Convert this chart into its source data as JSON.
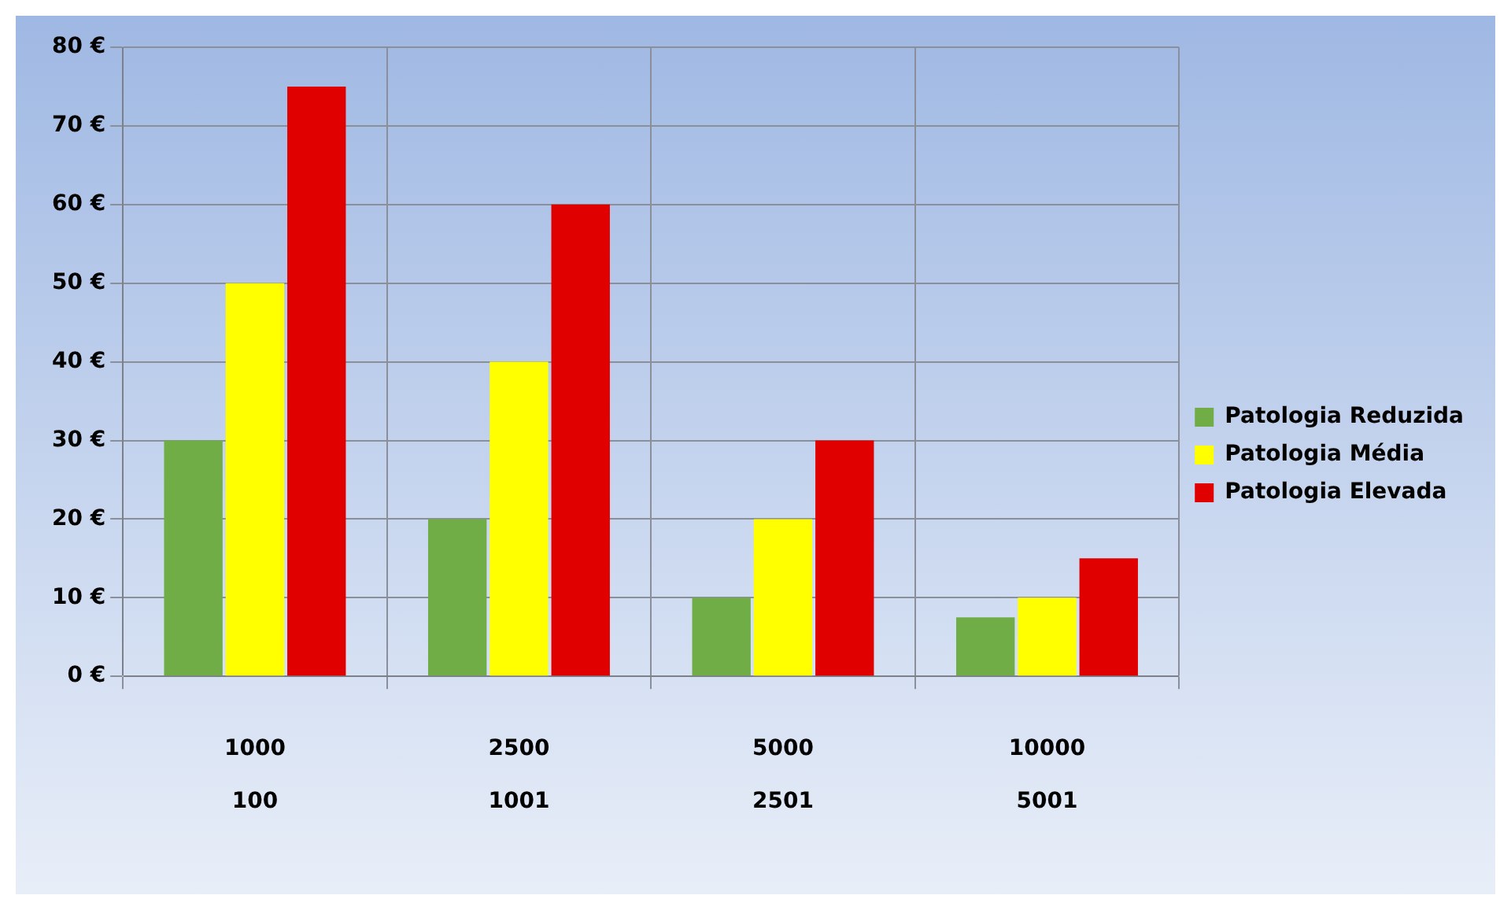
{
  "chart_data": {
    "type": "bar",
    "categories": [
      "1000\n100",
      "2500\n1001",
      "5000\n2501",
      "10000\n5001"
    ],
    "series": [
      {
        "name": "Patologia Reduzida",
        "color": "#70ad47",
        "values": [
          30,
          20,
          10,
          7.5
        ]
      },
      {
        "name": "Patologia Média",
        "color": "#ffff00",
        "values": [
          50,
          40,
          20,
          10
        ]
      },
      {
        "name": "Patologia Elevada",
        "color": "#e00000",
        "values": [
          75,
          60,
          30,
          15
        ]
      }
    ],
    "ylim": [
      0,
      80
    ],
    "yticks": [
      {
        "value": 0,
        "label": "0 €"
      },
      {
        "value": 10,
        "label": "10 €"
      },
      {
        "value": 20,
        "label": "20 €"
      },
      {
        "value": 30,
        "label": "30 €"
      },
      {
        "value": 40,
        "label": "40 €"
      },
      {
        "value": 50,
        "label": "50 €"
      },
      {
        "value": 60,
        "label": "60 €"
      },
      {
        "value": 70,
        "label": "70 €"
      },
      {
        "value": 80,
        "label": "80 €"
      }
    ],
    "grid": true,
    "legend": "right"
  }
}
